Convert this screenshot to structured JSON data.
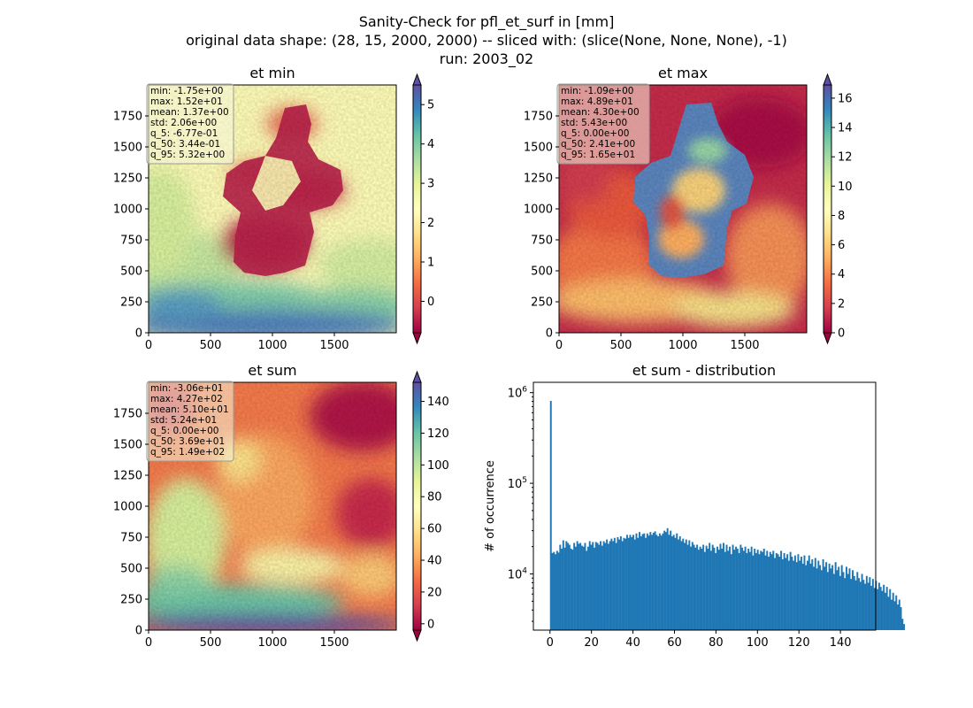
{
  "figure": {
    "title_lines": [
      "Sanity-Check for pfl_et_surf in [mm]",
      "original data shape: (28, 15, 2000, 2000) -- sliced with: (slice(None, None, None), -1)",
      "run: 2003_02"
    ]
  },
  "chart_data": [
    {
      "type": "heatmap",
      "title": "et min",
      "xlabel": "",
      "ylabel": "",
      "xlim": [
        0,
        2000
      ],
      "ylim": [
        0,
        2000
      ],
      "x_ticks": [
        0,
        500,
        1000,
        1500
      ],
      "y_ticks": [
        0,
        250,
        500,
        750,
        1000,
        1250,
        1500,
        1750
      ],
      "colormap": "Spectral",
      "color_range": [
        -0.8,
        5.5
      ],
      "colorbar_ticks": [
        0,
        1,
        2,
        3,
        4,
        5
      ],
      "colorbar_extend": "both",
      "stats_box": [
        "min: -1.75e+00",
        "max: 1.52e+01",
        "mean: 1.37e+00",
        "std: 2.06e+00",
        "q_5: -6.77e-01",
        "q_50: 3.44e-01",
        "q_95: 5.32e+00"
      ]
    },
    {
      "type": "heatmap",
      "title": "et max",
      "xlabel": "",
      "ylabel": "",
      "xlim": [
        0,
        2000
      ],
      "ylim": [
        0,
        2000
      ],
      "x_ticks": [
        0,
        500,
        1000,
        1500
      ],
      "y_ticks": [
        0,
        250,
        500,
        750,
        1000,
        1250,
        1500,
        1750
      ],
      "colormap": "Spectral",
      "color_range": [
        0,
        16.9
      ],
      "colorbar_ticks": [
        0,
        2,
        4,
        6,
        8,
        10,
        12,
        14,
        16
      ],
      "colorbar_extend": "both",
      "stats_box": [
        "min: -1.09e+00",
        "max: 4.89e+01",
        "mean: 4.30e+00",
        "std: 5.43e+00",
        "q_5: 0.00e+00",
        "q_50: 2.41e+00",
        "q_95: 1.65e+01"
      ]
    },
    {
      "type": "heatmap",
      "title": "et sum",
      "xlabel": "",
      "ylabel": "",
      "xlim": [
        0,
        2000
      ],
      "ylim": [
        0,
        2000
      ],
      "x_ticks": [
        0,
        500,
        1000,
        1500
      ],
      "y_ticks": [
        0,
        250,
        500,
        750,
        1000,
        1250,
        1500,
        1750
      ],
      "colormap": "Spectral",
      "color_range": [
        -4,
        152
      ],
      "colorbar_ticks": [
        0,
        20,
        40,
        60,
        80,
        100,
        120,
        140
      ],
      "colorbar_extend": "both",
      "stats_box": [
        "min: -3.06e+01",
        "max: 4.27e+02",
        "mean: 5.10e+01",
        "std: 5.24e+01",
        "q_5: 0.00e+00",
        "q_50: 3.69e+01",
        "q_95: 1.49e+02"
      ]
    },
    {
      "type": "bar",
      "title": "et sum - distribution",
      "xlabel": "",
      "ylabel": "# of occurrence",
      "yscale": "log",
      "xlim": [
        -8,
        157
      ],
      "ylim": [
        2400,
        1300000
      ],
      "x_ticks": [
        0,
        20,
        40,
        60,
        80,
        100,
        120,
        140
      ],
      "y_ticks": [
        {
          "value": 10000,
          "label": "10^4"
        },
        {
          "value": 100000,
          "label": "10^5"
        },
        {
          "value": 1000000,
          "label": "10^6"
        }
      ],
      "bin_start": 0,
      "bin_width": 0.75,
      "color": "#1f77b4",
      "counts": [
        810000,
        17000,
        17500,
        16500,
        18000,
        17200,
        21000,
        19000,
        23500,
        19500,
        23000,
        22000,
        21000,
        19000,
        18500,
        22000,
        20000,
        23000,
        21500,
        22000,
        20500,
        20000,
        22000,
        18000,
        20000,
        23000,
        21000,
        22500,
        19500,
        22500,
        22000,
        21000,
        23000,
        20500,
        23000,
        22000,
        24000,
        21500,
        23000,
        24500,
        23000,
        25000,
        22000,
        25500,
        24000,
        26000,
        23000,
        25000,
        24500,
        27000,
        25000,
        27000,
        25500,
        27000,
        24000,
        28000,
        25000,
        29000,
        26000,
        27500,
        28000,
        25000,
        28000,
        26500,
        29000,
        27000,
        28500,
        29500,
        27000,
        26000,
        28000,
        26500,
        28000,
        30000,
        29000,
        32000,
        27000,
        30000,
        26000,
        27000,
        25000,
        28000,
        24000,
        26000,
        23000,
        24500,
        22000,
        24000,
        21000,
        23500,
        20000,
        22500,
        21000,
        19500,
        21000,
        18500,
        20000,
        19000,
        21000,
        17500,
        20500,
        19000,
        22000,
        18000,
        21000,
        19500,
        17000,
        20000,
        18500,
        21500,
        19000,
        22000,
        17500,
        21000,
        18000,
        20000,
        16500,
        21000,
        18500,
        20000,
        19000,
        17000,
        21000,
        19500,
        18000,
        20000,
        17000,
        19000,
        17500,
        20000,
        16000,
        19000,
        17000,
        18500,
        16500,
        18000,
        17500,
        19000,
        16000,
        18000,
        15500,
        17500,
        16500,
        18000,
        15000,
        17000,
        16500,
        15500,
        18000,
        14500,
        17000,
        15000,
        16500,
        14000,
        17500,
        15500,
        14000,
        16000,
        13500,
        16500,
        14000,
        15500,
        13000,
        16000,
        12500,
        14000,
        16000,
        13000,
        14500,
        12000,
        15000,
        11500,
        14000,
        12500,
        11000,
        14500,
        12000,
        13500,
        10500,
        13000,
        11500,
        12500,
        10000,
        13500,
        11000,
        12000,
        9500,
        12500,
        10500,
        9000,
        12000,
        10000,
        11500,
        8800,
        11000,
        9500,
        8500,
        10500,
        9000,
        8200,
        10000,
        8600,
        7800,
        9500,
        8000,
        9200,
        7400,
        8800,
        7000,
        8400,
        6800,
        8000,
        7200,
        6500,
        7600,
        6200,
        7200,
        5600,
        6800,
        5200,
        6200,
        5000,
        5800,
        4600,
        5200,
        4300,
        3200,
        2800
      ]
    }
  ]
}
